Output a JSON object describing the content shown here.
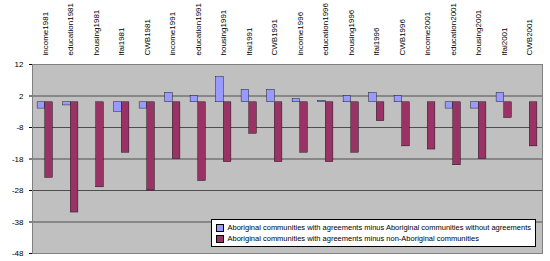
{
  "chart_data": {
    "type": "bar",
    "categories": [
      "income1981",
      "education1981",
      "housing1981",
      "lfai1981",
      "CWB1981",
      "income1991",
      "education1991",
      "housing1991",
      "lfai1991",
      "CWB1991",
      "income1996",
      "education1996",
      "housing1996",
      "lfai1996",
      "CWB1996",
      "income2001",
      "education2001",
      "housing2001",
      "lfai2001",
      "CWB2001"
    ],
    "series": [
      {
        "name": "Aboriginal communities with agreements minus Aboriginal communities without agreements",
        "color": "#9999ff",
        "values": [
          -2,
          -1,
          0,
          -3,
          -2,
          3,
          2,
          8,
          4,
          4,
          1,
          0.5,
          2,
          3,
          2,
          0,
          -2,
          -2,
          3,
          0
        ]
      },
      {
        "name": "Aboriginal communities with agreements minus non-Aboriginal communities",
        "color": "#993366",
        "values": [
          -24,
          -35,
          -27,
          -16,
          -28,
          -18,
          -25,
          -19,
          -10,
          -19,
          -16,
          -19,
          -16,
          -6,
          -14,
          -15,
          -20,
          -18,
          -5,
          -14
        ]
      }
    ],
    "ylim": [
      -48,
      12
    ],
    "yticks": [
      12,
      2,
      -8,
      -18,
      -28,
      -38,
      -48
    ],
    "grid": true,
    "legend": "bottom-right"
  }
}
